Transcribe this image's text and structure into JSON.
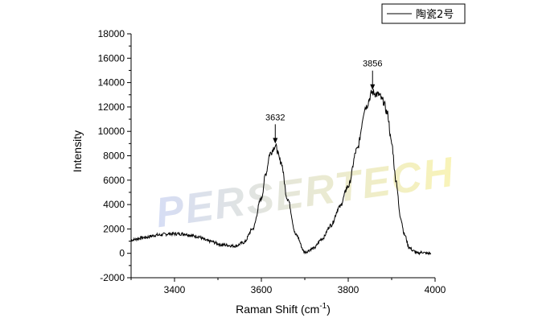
{
  "chart_data": {
    "type": "line",
    "title": "",
    "xlabel": "Raman Shift (cm",
    "xlabel_sup": "-1",
    "xlabel_tail": ")",
    "ylabel": "Intensity",
    "xlim": [
      3300,
      4000
    ],
    "ylim": [
      -2000,
      18000
    ],
    "x_ticks": [
      3400,
      3600,
      3800,
      4000
    ],
    "y_ticks": [
      -2000,
      0,
      2000,
      4000,
      6000,
      8000,
      10000,
      12000,
      14000,
      16000,
      18000
    ],
    "x_tick_labels": [
      "3400",
      "3600",
      "3800",
      "4000"
    ],
    "y_tick_labels": [
      "-2000",
      "0",
      "2000",
      "4000",
      "6000",
      "8000",
      "10000",
      "12000",
      "14000",
      "16000",
      "18000"
    ],
    "grid": false,
    "legend": {
      "placement": "top-right",
      "entries": [
        "陶瓷2号"
      ]
    },
    "line_color": "#000000",
    "series": [
      {
        "name": "陶瓷2号",
        "x": [
          3300,
          3330,
          3360,
          3390,
          3420,
          3450,
          3480,
          3510,
          3540,
          3560,
          3580,
          3600,
          3610,
          3620,
          3632,
          3645,
          3660,
          3680,
          3700,
          3720,
          3740,
          3760,
          3780,
          3800,
          3820,
          3840,
          3856,
          3870,
          3880,
          3890,
          3900,
          3910,
          3920,
          3930,
          3940,
          3950,
          3960,
          3970,
          3980,
          3990
        ],
        "y": [
          1100,
          1300,
          1500,
          1600,
          1600,
          1400,
          1000,
          700,
          600,
          900,
          2000,
          4500,
          6500,
          8200,
          8800,
          7500,
          4500,
          1500,
          100,
          400,
          1200,
          2300,
          3800,
          5500,
          8500,
          12000,
          13200,
          13000,
          12500,
          11500,
          9000,
          6000,
          3000,
          1500,
          500,
          200,
          0,
          100,
          0,
          0
        ]
      }
    ],
    "annotations": [
      {
        "x": 3632,
        "y": 8800,
        "label": "3632"
      },
      {
        "x": 3856,
        "y": 13200,
        "label": "3856"
      }
    ]
  },
  "watermark": {
    "text": "PERSERTECH",
    "color_start": "#c9d2f2",
    "color_end": "#f7f0a0"
  }
}
